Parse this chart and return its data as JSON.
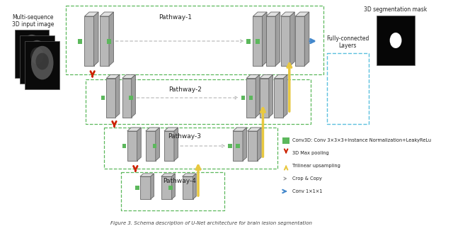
{
  "bg_color": "#ffffff",
  "dashed_green": "#5cb85c",
  "dashed_blue": "#5bc0de",
  "gray_block": "#b0b0b0",
  "gray_block_top": "#d8d8d8",
  "gray_block_right": "#909090",
  "pathway_labels": [
    "Pathway-1",
    "Pathway-2",
    "Pathway-3",
    "Pathway-4"
  ],
  "legend_items": [
    {
      "color": "#5cb85c",
      "label": "Conv3D: Conv 3×3×3+Instance Normalization+LeakyReLu",
      "type": "square"
    },
    {
      "color": "#cc2200",
      "label": "3D Max pooling",
      "type": "arrow_down"
    },
    {
      "color": "#e8c840",
      "label": "Trilinear upsampling",
      "type": "arrow_up"
    },
    {
      "color": "#cccccc",
      "label": "Crop & Copy",
      "type": "arrow_dash"
    },
    {
      "color": "#4488cc",
      "label": "Conv 1×1×1",
      "type": "arrow_right"
    }
  ]
}
